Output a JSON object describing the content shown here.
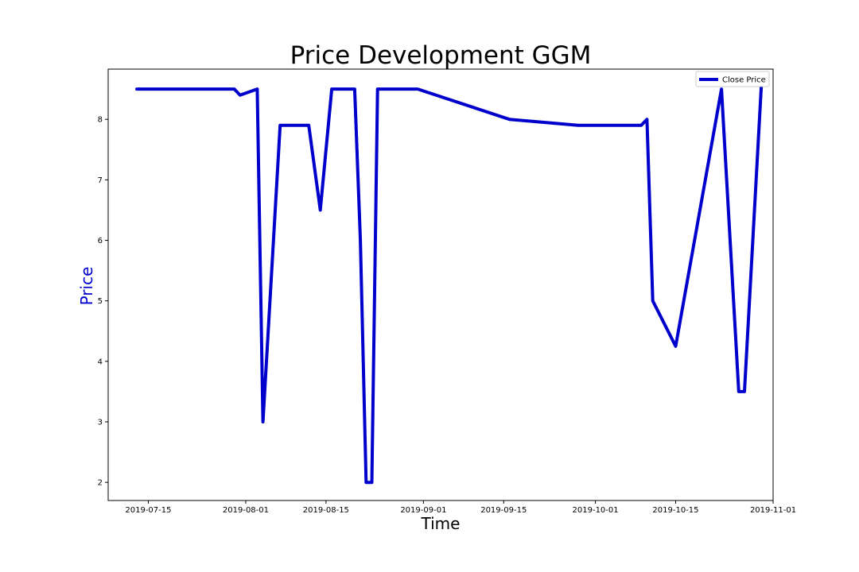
{
  "chart_data": {
    "type": "line",
    "title": "Price Development GGM",
    "xlabel": "Time",
    "ylabel": "Price",
    "ylabel_color": "#0000cc",
    "line_color": "#0000cc",
    "xlim": [
      "2019-07-08",
      "2019-11-01"
    ],
    "ylim": [
      1.7,
      8.83
    ],
    "grid": false,
    "legend_position": "top-right",
    "x_ticks": [
      "2019-07-15",
      "2019-08-01",
      "2019-08-15",
      "2019-09-01",
      "2019-09-15",
      "2019-10-01",
      "2019-10-15",
      "2019-11-01"
    ],
    "y_ticks": [
      2,
      3,
      4,
      5,
      6,
      7,
      8
    ],
    "series": [
      {
        "name": "Close Price",
        "points": [
          {
            "x": "2019-07-13",
            "y": 8.5
          },
          {
            "x": "2019-07-30",
            "y": 8.5
          },
          {
            "x": "2019-07-31",
            "y": 8.4
          },
          {
            "x": "2019-08-03",
            "y": 8.5
          },
          {
            "x": "2019-08-04",
            "y": 3.0
          },
          {
            "x": "2019-08-07",
            "y": 7.9
          },
          {
            "x": "2019-08-12",
            "y": 7.9
          },
          {
            "x": "2019-08-14",
            "y": 6.5
          },
          {
            "x": "2019-08-16",
            "y": 8.5
          },
          {
            "x": "2019-08-20",
            "y": 8.5
          },
          {
            "x": "2019-08-21",
            "y": 6.0
          },
          {
            "x": "2019-08-22",
            "y": 2.0
          },
          {
            "x": "2019-08-23",
            "y": 2.0
          },
          {
            "x": "2019-08-24",
            "y": 8.5
          },
          {
            "x": "2019-08-31",
            "y": 8.5
          },
          {
            "x": "2019-09-16",
            "y": 8.0
          },
          {
            "x": "2019-09-28",
            "y": 7.9
          },
          {
            "x": "2019-10-09",
            "y": 7.9
          },
          {
            "x": "2019-10-10",
            "y": 8.0
          },
          {
            "x": "2019-10-11",
            "y": 5.0
          },
          {
            "x": "2019-10-15",
            "y": 4.25
          },
          {
            "x": "2019-10-23",
            "y": 8.5
          },
          {
            "x": "2019-10-26",
            "y": 3.5
          },
          {
            "x": "2019-10-27",
            "y": 3.5
          },
          {
            "x": "2019-10-30",
            "y": 8.65
          }
        ]
      }
    ]
  }
}
